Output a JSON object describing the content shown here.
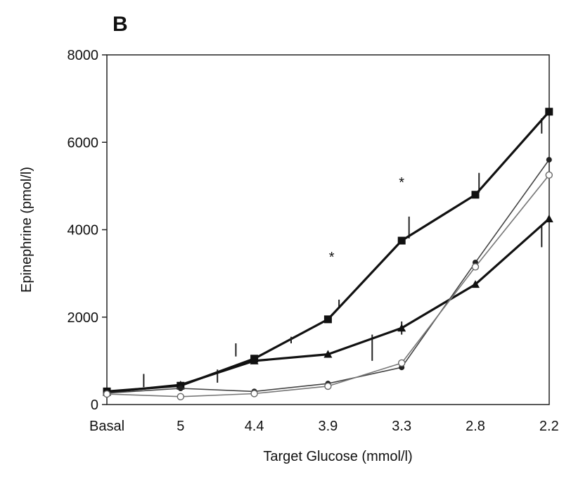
{
  "panel_label": "B",
  "chart_data": {
    "type": "line",
    "xlabel": "Target Glucose (mmol/l)",
    "ylabel": "Epinephrine (pmol/l)",
    "categories": [
      "Basal",
      "5",
      "4.4",
      "3.9",
      "3.3",
      "2.8",
      "2.2"
    ],
    "ylim": [
      0,
      8000
    ],
    "yticks": [
      0,
      2000,
      4000,
      6000,
      8000
    ],
    "grid": false,
    "legend": "none",
    "series": [
      {
        "marker": "filled-square",
        "style": "thick",
        "color": "#111111",
        "points": [
          [
            0,
            300
          ],
          [
            1,
            430
          ],
          [
            2,
            1050
          ],
          [
            3,
            1950
          ],
          [
            4,
            3750
          ],
          [
            5,
            4800
          ],
          [
            6,
            6700
          ]
        ],
        "error_bars": [
          [
            0.5,
            400,
            700
          ],
          [
            1.75,
            1100,
            1400
          ],
          [
            3.15,
            2200,
            2400
          ],
          [
            4.1,
            3800,
            4300
          ],
          [
            5.05,
            4850,
            5300
          ],
          [
            5.9,
            6200,
            6550
          ]
        ]
      },
      {
        "marker": "filled-triangle",
        "style": "thick",
        "color": "#111111",
        "points": [
          [
            0,
            280
          ],
          [
            1,
            450
          ],
          [
            2,
            1000
          ],
          [
            3,
            1150
          ],
          [
            4,
            1750
          ],
          [
            5,
            2750
          ],
          [
            6,
            4250
          ]
        ],
        "error_bars": [
          [
            1.5,
            500,
            800
          ],
          [
            2.5,
            1400,
            1550
          ],
          [
            3.6,
            1000,
            1600
          ],
          [
            4.0,
            1600,
            1900
          ],
          [
            5.9,
            3600,
            4100
          ]
        ]
      },
      {
        "marker": "filled-circle",
        "style": "thin",
        "color": "#444444",
        "points": [
          [
            0,
            260
          ],
          [
            1,
            370
          ],
          [
            2,
            300
          ],
          [
            3,
            480
          ],
          [
            4,
            850
          ],
          [
            5,
            3250
          ],
          [
            6,
            5600
          ]
        ],
        "error_bars": []
      },
      {
        "marker": "open-circle",
        "style": "thin",
        "color": "#777777",
        "points": [
          [
            0,
            240
          ],
          [
            1,
            180
          ],
          [
            2,
            250
          ],
          [
            3,
            420
          ],
          [
            4,
            950
          ],
          [
            5,
            3150
          ],
          [
            6,
            5250
          ]
        ],
        "error_bars": []
      }
    ],
    "annotations": [
      {
        "text": "*",
        "x": 3.05,
        "y": 3400
      },
      {
        "text": "*",
        "x": 4.0,
        "y": 5100
      }
    ]
  }
}
